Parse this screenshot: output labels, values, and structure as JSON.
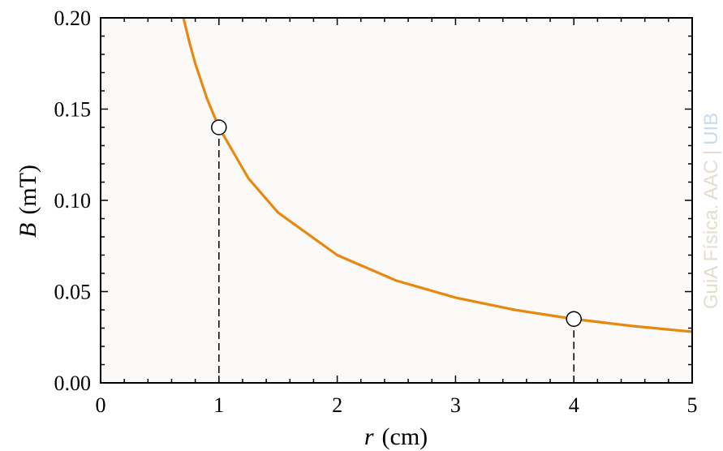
{
  "chart_data": {
    "type": "line",
    "title": "",
    "xlabel_var": "r",
    "xlabel_unit": "(cm)",
    "ylabel_var": "B",
    "ylabel_unit": "(mT)",
    "xlim": [
      0,
      5
    ],
    "ylim": [
      0,
      0.2
    ],
    "x_ticks": [
      "0",
      "1",
      "2",
      "3",
      "4",
      "5"
    ],
    "y_ticks": [
      "0.00",
      "0.05",
      "0.10",
      "0.15",
      "0.20"
    ],
    "grid": false,
    "series": [
      {
        "relation": "B = 0.14 / r",
        "x": [
          0.7,
          0.75,
          0.8,
          0.9,
          1.0,
          1.25,
          1.5,
          2.0,
          2.5,
          3.0,
          3.5,
          4.0,
          4.5,
          5.0
        ],
        "y": [
          0.2,
          0.1867,
          0.175,
          0.1556,
          0.14,
          0.112,
          0.0933,
          0.07,
          0.056,
          0.0467,
          0.04,
          0.035,
          0.0311,
          0.028
        ],
        "color": "#e8890f"
      }
    ],
    "highlighted_points": [
      {
        "x": 1,
        "y": 0.14
      },
      {
        "x": 4,
        "y": 0.035
      }
    ],
    "background_color": "#fbfaf8"
  },
  "watermark": {
    "text": "GuiA Física. AAC",
    "separator": "|",
    "org": "UIB",
    "text_color": "#e3ddd2",
    "org_color": "#c9ddef"
  }
}
